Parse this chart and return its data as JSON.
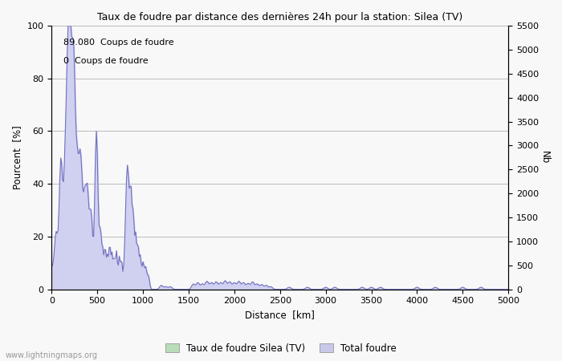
{
  "title": "Taux de foudre par distance des dernières 24h pour la station: Silea (TV)",
  "xlabel": "Distance  [km]",
  "ylabel_left": "Pourcent  [%]",
  "ylabel_right": "Nb",
  "annotation_line1": "89.080  Coups de foudre",
  "annotation_line2": "0  Coups de foudre",
  "legend_label1": "Taux de foudre Silea (TV)",
  "legend_label2": "Total foudre",
  "legend_color1": "#b8ddb8",
  "legend_color2": "#c8c8e8",
  "fill_color": "#d0d0f0",
  "line_color": "#7070c0",
  "watermark": "www.lightningmaps.org",
  "xlim": [
    0,
    5000
  ],
  "ylim_left": [
    0,
    100
  ],
  "ylim_right": [
    0,
    5500
  ],
  "xticks": [
    0,
    500,
    1000,
    1500,
    2000,
    2500,
    3000,
    3500,
    4000,
    4500,
    5000
  ],
  "yticks_left": [
    0,
    20,
    40,
    60,
    80,
    100
  ],
  "yticks_right": [
    0,
    500,
    1000,
    1500,
    2000,
    2500,
    3000,
    3500,
    4000,
    4500,
    5000,
    5500
  ],
  "background_color": "#f8f8f8",
  "grid_color": "#bbbbbb"
}
